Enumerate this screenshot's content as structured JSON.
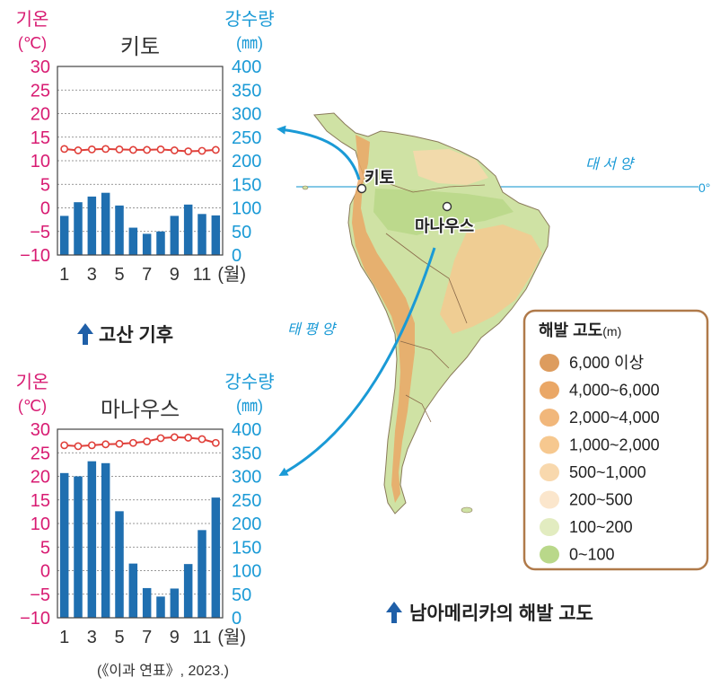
{
  "colors": {
    "temp": "#d81b72",
    "precip": "#1a9ad6",
    "bar": "#1f6fb0",
    "line": "#e0403a",
    "caption_arrow": "#1f5fa8",
    "legend_border": "#b07a4a"
  },
  "chart_data": [
    {
      "type": "bar+line",
      "title": "키토",
      "left_axis": {
        "label_line1": "기온",
        "label_line2": "(℃)",
        "ticks": [
          "30",
          "25",
          "20",
          "15",
          "10",
          "5",
          "0",
          "−5",
          "−10"
        ],
        "range": [
          -10,
          30
        ]
      },
      "right_axis": {
        "label_line1": "강수량",
        "label_line2": "(㎜)",
        "ticks": [
          "400",
          "350",
          "300",
          "250",
          "200",
          "150",
          "100",
          "50",
          "0"
        ],
        "range": [
          0,
          400
        ]
      },
      "x_ticks": [
        "1",
        "3",
        "5",
        "7",
        "9",
        "11"
      ],
      "x_unit": "(월)",
      "months": [
        1,
        2,
        3,
        4,
        5,
        6,
        7,
        8,
        9,
        10,
        11,
        12
      ],
      "temperature": [
        12.5,
        12.2,
        12.4,
        12.5,
        12.4,
        12.3,
        12.3,
        12.4,
        12.2,
        12.0,
        12.1,
        12.3
      ],
      "precipitation": [
        83,
        112,
        124,
        132,
        105,
        58,
        45,
        50,
        83,
        107,
        87,
        84
      ]
    },
    {
      "type": "bar+line",
      "title": "마나우스",
      "left_axis": {
        "label_line1": "기온",
        "label_line2": "(℃)",
        "ticks": [
          "30",
          "25",
          "20",
          "15",
          "10",
          "5",
          "0",
          "−5",
          "−10"
        ],
        "range": [
          -10,
          30
        ]
      },
      "right_axis": {
        "label_line1": "강수량",
        "label_line2": "(㎜)",
        "ticks": [
          "400",
          "350",
          "300",
          "250",
          "200",
          "150",
          "100",
          "50",
          "0"
        ],
        "range": [
          0,
          400
        ]
      },
      "x_ticks": [
        "1",
        "3",
        "5",
        "7",
        "9",
        "11"
      ],
      "x_unit": "(월)",
      "months": [
        1,
        2,
        3,
        4,
        5,
        6,
        7,
        8,
        9,
        10,
        11,
        12
      ],
      "temperature": [
        26.6,
        26.4,
        26.6,
        26.8,
        26.9,
        27.1,
        27.4,
        28.1,
        28.3,
        28.2,
        27.9,
        27.1
      ],
      "precipitation": [
        307,
        300,
        332,
        328,
        226,
        115,
        63,
        45,
        62,
        114,
        186,
        255
      ]
    }
  ],
  "captions": {
    "quito": "고산 기후",
    "map": "남아메리카의 해발 고도",
    "source": "(《이과 연표》, 2023.)"
  },
  "map": {
    "labels": {
      "quito": "키토",
      "manaus": "마나우스",
      "atlantic": "대 서 양",
      "pacific": "태 평 양",
      "equator": "0°"
    }
  },
  "legend": {
    "title": "해발 고도",
    "unit": "(m)",
    "items": [
      {
        "label": "6,000 이상",
        "color": "#dd9c5e"
      },
      {
        "label": "4,000~6,000",
        "color": "#eaa766"
      },
      {
        "label": "2,000~4,000",
        "color": "#f1b77b"
      },
      {
        "label": "1,000~2,000",
        "color": "#f6c88f"
      },
      {
        "label": "500~1,000",
        "color": "#f8d8ad"
      },
      {
        "label": "200~500",
        "color": "#fbe6cc"
      },
      {
        "label": "100~200",
        "color": "#e2ecc0"
      },
      {
        "label": "0~100",
        "color": "#b9d88a"
      }
    ]
  }
}
